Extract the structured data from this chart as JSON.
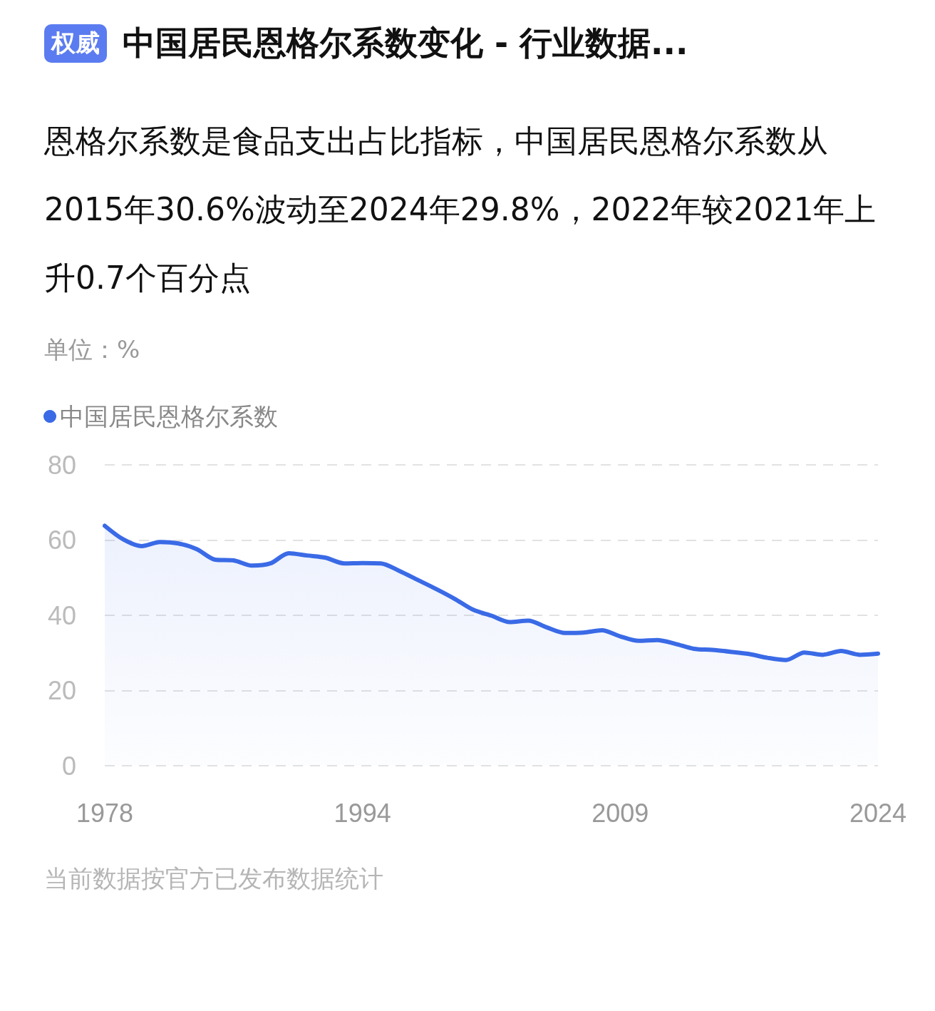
{
  "chart_data": {
    "type": "area",
    "title": "中国居民恩格尔系数变化 - 行业数据...",
    "subtitle": "恩格尔系数是食品支出占比指标，中国居民恩格尔系数从2015年30.6%波动至2024年29.8%，2022年较2021年上升0.7个百分点",
    "ylabel": "单位：%",
    "annotations": [
      "权威",
      "当前数据按官方已发布数据统计"
    ],
    "categories": [
      "1978",
      null,
      null,
      null,
      null,
      null,
      null,
      null,
      null,
      null,
      null,
      null,
      null,
      null,
      "1994",
      null,
      null,
      null,
      null,
      null,
      null,
      null,
      null,
      null,
      null,
      null,
      null,
      null,
      "2009",
      null,
      null,
      null,
      null,
      null,
      null,
      null,
      null,
      null,
      null,
      null,
      null,
      null,
      "2024"
    ],
    "series": [
      {
        "name": "中国居民恩格尔系数",
        "color": "#3a6ae6",
        "values": [
          63.8,
          60.2,
          58.4,
          59.5,
          59.1,
          57.6,
          54.8,
          54.6,
          53.2,
          53.8,
          56.5,
          55.9,
          55.3,
          53.8,
          53.9,
          53.8,
          51.8,
          49.4,
          47.0,
          44.4,
          41.5,
          39.9,
          38.2,
          38.6,
          36.8,
          35.3,
          35.4,
          36.0,
          34.4,
          33.2,
          33.4,
          32.4,
          31.1,
          30.8,
          30.3,
          29.7,
          28.7,
          28.1,
          30.1,
          29.5,
          30.5,
          29.5,
          29.8
        ]
      }
    ],
    "ylim": [
      0,
      80
    ],
    "yticks": [
      0,
      20,
      40,
      60,
      80
    ],
    "grid": "y",
    "legend": "top left",
    "marker": "none",
    "line_style": "solid"
  }
}
